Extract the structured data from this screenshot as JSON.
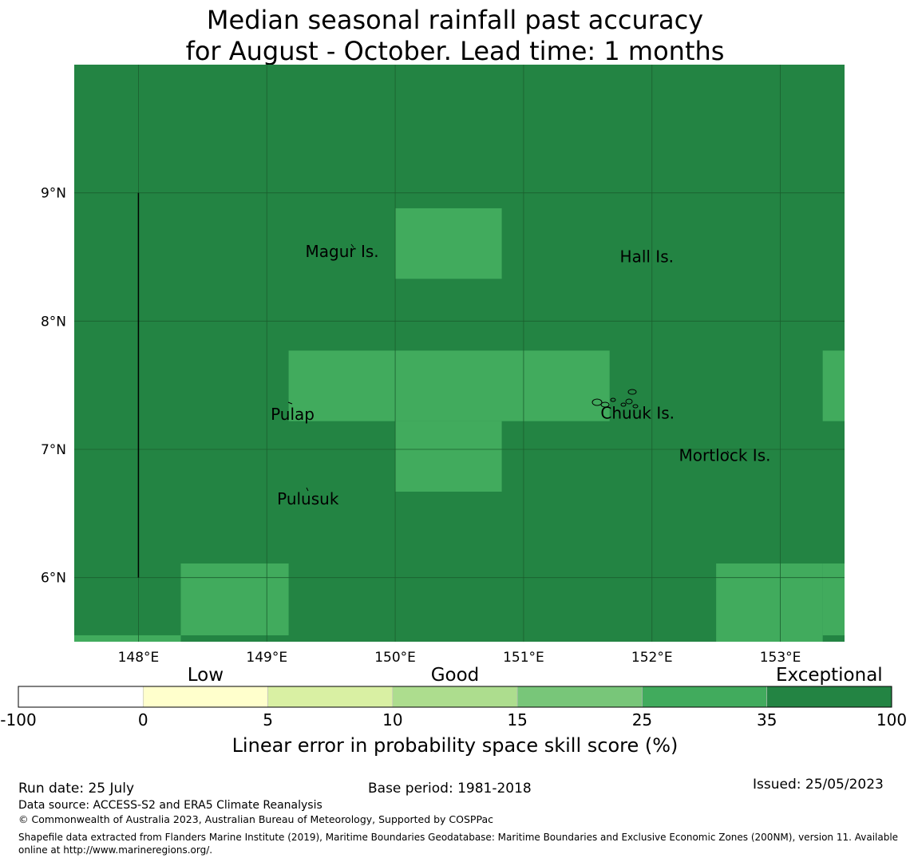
{
  "title": {
    "line1": "Median seasonal rainfall past accuracy",
    "line2": "for August - October. Lead time: 1 months"
  },
  "map": {
    "lon_range": [
      147.5,
      153.5
    ],
    "lat_range": [
      5.5,
      10.0
    ],
    "lon_ticks": [
      {
        "value": 148,
        "label": "148°E"
      },
      {
        "value": 149,
        "label": "149°E"
      },
      {
        "value": 150,
        "label": "150°E"
      },
      {
        "value": 151,
        "label": "151°E"
      },
      {
        "value": 152,
        "label": "152°E"
      },
      {
        "value": 153,
        "label": "153°E"
      }
    ],
    "lat_ticks": [
      {
        "value": 9,
        "label": "9°N"
      },
      {
        "value": 8,
        "label": "8°N"
      },
      {
        "value": 7,
        "label": "7°N"
      },
      {
        "value": 6,
        "label": "6°N"
      }
    ],
    "background_color": "#238443",
    "grid_color": "#1b5e2e",
    "cells": [
      {
        "lon": [
          150.0,
          150.83
        ],
        "lat": [
          8.33,
          8.88
        ],
        "color": "#41ab5d"
      },
      {
        "lon": [
          149.17,
          151.67
        ],
        "lat": [
          7.22,
          7.77
        ],
        "color": "#41ab5d"
      },
      {
        "lon": [
          150.0,
          150.83
        ],
        "lat": [
          6.67,
          7.22
        ],
        "color": "#41ab5d"
      },
      {
        "lon": [
          153.33,
          153.5
        ],
        "lat": [
          7.22,
          7.77
        ],
        "color": "#41ab5d"
      },
      {
        "lon": [
          148.33,
          149.17
        ],
        "lat": [
          5.55,
          6.11
        ],
        "color": "#41ab5d"
      },
      {
        "lon": [
          147.5,
          148.33
        ],
        "lat": [
          5.5,
          5.55
        ],
        "color": "#41ab5d"
      },
      {
        "lon": [
          152.5,
          153.33
        ],
        "lat": [
          5.5,
          6.11
        ],
        "color": "#41ab5d"
      },
      {
        "lon": [
          153.33,
          153.5
        ],
        "lat": [
          5.55,
          6.11
        ],
        "color": "#41ab5d"
      }
    ],
    "boundary_line": {
      "lon": 148.0,
      "lat": [
        6.0,
        9.0
      ]
    },
    "places": [
      {
        "name": "Magur Is.",
        "lon": 149.3,
        "lat": 8.5
      },
      {
        "name": "Hall Is.",
        "lon": 151.75,
        "lat": 8.46
      },
      {
        "name": "Pulap",
        "lon": 149.03,
        "lat": 7.23
      },
      {
        "name": "Chuuk Is.",
        "lon": 151.6,
        "lat": 7.24
      },
      {
        "name": "Mortlock Is.",
        "lon": 152.21,
        "lat": 6.91
      },
      {
        "name": "Pulusuk",
        "lon": 149.08,
        "lat": 6.57
      }
    ]
  },
  "colorbar": {
    "category_labels": [
      {
        "text": "Low",
        "pos": 1.5
      },
      {
        "text": "Good",
        "pos": 3.5
      },
      {
        "text": "Exceptional",
        "pos": 6.5
      }
    ],
    "bins": [
      {
        "color": "#ffffff"
      },
      {
        "color": "#ffffcc"
      },
      {
        "color": "#d9f0a3"
      },
      {
        "color": "#addd8e"
      },
      {
        "color": "#78c679"
      },
      {
        "color": "#41ab5d"
      },
      {
        "color": "#238443"
      }
    ],
    "tick_labels": [
      "-100",
      "0",
      "5",
      "10",
      "15",
      "25",
      "35",
      "100"
    ],
    "label": "Linear error in probability space skill score (%)"
  },
  "footer": {
    "run_date": "Run date: 25 July",
    "base_period": "Base period: 1981-2018",
    "issued": "Issued: 25/05/2023",
    "data_source": "Data source: ACCESS-S2 and ERA5 Climate Reanalysis",
    "copyright": "© Commonwealth of Australia 2023, Australian Bureau of Meteorology, Supported by COSPPac",
    "shapefile": "Shapefile data extracted from Flanders Marine Institute (2019), Maritime Boundaries Geodatabase: Maritime Boundaries and Exclusive Economic Zones (200NM), version 11. Available online at http://www.marineregions.org/."
  }
}
